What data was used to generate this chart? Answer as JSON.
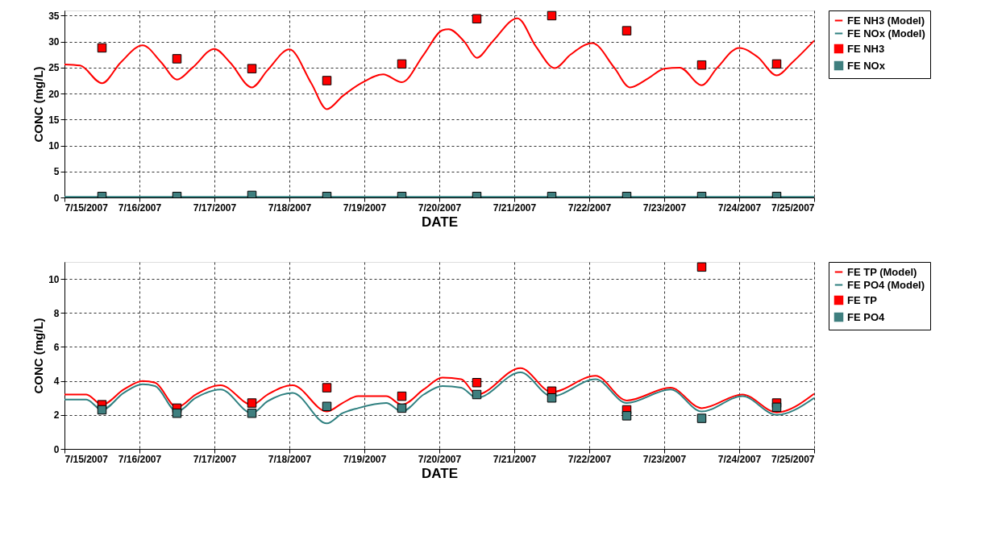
{
  "chart_data": [
    {
      "type": "line",
      "xlabel": "DATE",
      "ylabel": "CONC (mg/L)",
      "xlim": [
        "2007-07-15",
        "2007-07-25"
      ],
      "xticks": [
        {
          "value": "2007-07-15",
          "label": "7/15/2007"
        },
        {
          "value": "2007-07-16",
          "label": "7/16/2007"
        },
        {
          "value": "2007-07-17",
          "label": "7/17/2007"
        },
        {
          "value": "2007-07-18",
          "label": "7/18/2007"
        },
        {
          "value": "2007-07-19",
          "label": "7/19/2007"
        },
        {
          "value": "2007-07-20",
          "label": "7/20/2007"
        },
        {
          "value": "2007-07-21",
          "label": "7/21/2007"
        },
        {
          "value": "2007-07-22",
          "label": "7/22/2007"
        },
        {
          "value": "2007-07-23",
          "label": "7/23/2007"
        },
        {
          "value": "2007-07-24",
          "label": "7/24/2007"
        },
        {
          "value": "2007-07-25",
          "label": "7/25/2007"
        }
      ],
      "ylim": [
        0,
        36
      ],
      "yticks": [
        0,
        5,
        10,
        15,
        20,
        25,
        30,
        35
      ],
      "grid": true,
      "legend": "top right",
      "series": [
        {
          "name": "FE NH3 (Model)",
          "type": "line",
          "color": "#ff0000",
          "marker": "none",
          "x": [
            "2007-07-15T00:00",
            "2007-07-15T05:00",
            "2007-07-15T12:00",
            "2007-07-15T18:00",
            "2007-07-16T01:00",
            "2007-07-16T07:00",
            "2007-07-16T12:00",
            "2007-07-16T17:00",
            "2007-07-17T00:00",
            "2007-07-17T05:00",
            "2007-07-17T12:00",
            "2007-07-17T17:00",
            "2007-07-18T00:00",
            "2007-07-18T07:00",
            "2007-07-18T12:00",
            "2007-07-18T17:00",
            "2007-07-18T23:00",
            "2007-07-19T06:00",
            "2007-07-19T12:00",
            "2007-07-19T19:00",
            "2007-07-20T01:00",
            "2007-07-20T03:00",
            "2007-07-20T08:00",
            "2007-07-20T12:00",
            "2007-07-20T17:00",
            "2007-07-21T01:00",
            "2007-07-21T07:00",
            "2007-07-21T13:00",
            "2007-07-21T18:00",
            "2007-07-22T01:00",
            "2007-07-22T08:00",
            "2007-07-22T13:00",
            "2007-07-22T19:00",
            "2007-07-23T00:00",
            "2007-07-23T05:00",
            "2007-07-23T12:00",
            "2007-07-23T17:00",
            "2007-07-24T00:00",
            "2007-07-24T06:00",
            "2007-07-24T12:00",
            "2007-07-24T17:00",
            "2007-07-25T00:00"
          ],
          "values": [
            25.6,
            25.4,
            22.0,
            26.0,
            29.3,
            26.0,
            22.7,
            25.0,
            28.6,
            26.0,
            21.2,
            24.5,
            28.5,
            22.0,
            17.0,
            19.5,
            22.0,
            23.7,
            22.2,
            27.5,
            32.2,
            32.4,
            30.0,
            26.9,
            30.0,
            34.5,
            29.0,
            24.9,
            27.5,
            29.7,
            25.0,
            21.2,
            23.0,
            24.8,
            25.0,
            21.6,
            25.0,
            28.8,
            27.0,
            23.5,
            26.0,
            30.2
          ]
        },
        {
          "name": "FE NOx (Model)",
          "type": "line",
          "color": "#2f8080",
          "marker": "none",
          "x": [
            "2007-07-15T00:00",
            "2007-07-25T00:00"
          ],
          "values": [
            0.1,
            0.1
          ]
        },
        {
          "name": "FE NH3",
          "type": "scatter",
          "color": "#ff0000",
          "marker": "square",
          "x": [
            "2007-07-15T12:00",
            "2007-07-16T12:00",
            "2007-07-17T12:00",
            "2007-07-18T12:00",
            "2007-07-19T12:00",
            "2007-07-20T12:00",
            "2007-07-21T12:00",
            "2007-07-22T12:00",
            "2007-07-23T12:00",
            "2007-07-24T12:00"
          ],
          "values": [
            28.8,
            26.7,
            24.8,
            22.5,
            25.7,
            34.4,
            35.0,
            32.1,
            25.5,
            25.7
          ]
        },
        {
          "name": "FE NOx",
          "type": "scatter",
          "color": "#3f7f7f",
          "marker": "square",
          "x": [
            "2007-07-15T12:00",
            "2007-07-16T12:00",
            "2007-07-17T12:00",
            "2007-07-18T12:00",
            "2007-07-19T12:00",
            "2007-07-20T12:00",
            "2007-07-21T12:00",
            "2007-07-22T12:00",
            "2007-07-23T12:00",
            "2007-07-24T12:00"
          ],
          "values": [
            0.2,
            0.2,
            0.4,
            0.2,
            0.2,
            0.2,
            0.2,
            0.2,
            0.2,
            0.2
          ]
        }
      ]
    },
    {
      "type": "line",
      "xlabel": "DATE",
      "ylabel": "CONC (mg/L)",
      "xlim": [
        "2007-07-15",
        "2007-07-25"
      ],
      "xticks": [
        {
          "value": "2007-07-15",
          "label": "7/15/2007"
        },
        {
          "value": "2007-07-16",
          "label": "7/16/2007"
        },
        {
          "value": "2007-07-17",
          "label": "7/17/2007"
        },
        {
          "value": "2007-07-18",
          "label": "7/18/2007"
        },
        {
          "value": "2007-07-19",
          "label": "7/19/2007"
        },
        {
          "value": "2007-07-20",
          "label": "7/20/2007"
        },
        {
          "value": "2007-07-21",
          "label": "7/21/2007"
        },
        {
          "value": "2007-07-22",
          "label": "7/22/2007"
        },
        {
          "value": "2007-07-23",
          "label": "7/23/2007"
        },
        {
          "value": "2007-07-24",
          "label": "7/24/2007"
        },
        {
          "value": "2007-07-25",
          "label": "7/25/2007"
        }
      ],
      "ylim": [
        0,
        11
      ],
      "yticks": [
        0,
        2,
        4,
        6,
        8,
        10
      ],
      "grid": true,
      "legend": "top right",
      "series": [
        {
          "name": "FE TP (Model)",
          "type": "line",
          "color": "#ff0000",
          "marker": "none",
          "x": [
            "2007-07-15T00:00",
            "2007-07-15T07:00",
            "2007-07-15T12:00",
            "2007-07-15T19:00",
            "2007-07-16T01:00",
            "2007-07-16T05:00",
            "2007-07-16T12:00",
            "2007-07-16T18:00",
            "2007-07-17T02:00",
            "2007-07-17T12:00",
            "2007-07-17T17:00",
            "2007-07-18T01:00",
            "2007-07-18T12:00",
            "2007-07-18T17:00",
            "2007-07-18T22:00",
            "2007-07-19T07:00",
            "2007-07-19T12:00",
            "2007-07-19T19:00",
            "2007-07-20T01:00",
            "2007-07-20T07:00",
            "2007-07-20T12:00",
            "2007-07-21T02:00",
            "2007-07-21T12:00",
            "2007-07-22T02:00",
            "2007-07-22T12:00",
            "2007-07-23T02:00",
            "2007-07-23T12:00",
            "2007-07-24T01:00",
            "2007-07-24T12:00",
            "2007-07-25T00:00"
          ],
          "values": [
            3.2,
            3.2,
            2.6,
            3.5,
            4.0,
            3.9,
            2.45,
            3.2,
            3.75,
            2.6,
            3.2,
            3.75,
            2.2,
            2.7,
            3.1,
            3.1,
            2.6,
            3.5,
            4.2,
            4.1,
            3.2,
            4.75,
            3.35,
            4.3,
            2.85,
            3.6,
            2.4,
            3.2,
            2.15,
            3.25
          ]
        },
        {
          "name": "FE PO4 (Model)",
          "type": "line",
          "color": "#2f8080",
          "marker": "none",
          "x": [
            "2007-07-15T00:00",
            "2007-07-15T07:00",
            "2007-07-15T12:00",
            "2007-07-15T19:00",
            "2007-07-16T01:00",
            "2007-07-16T05:00",
            "2007-07-16T12:00",
            "2007-07-16T18:00",
            "2007-07-17T02:00",
            "2007-07-17T12:00",
            "2007-07-17T17:00",
            "2007-07-18T01:00",
            "2007-07-18T12:00",
            "2007-07-18T17:00",
            "2007-07-18T22:00",
            "2007-07-19T07:00",
            "2007-07-19T12:00",
            "2007-07-19T19:00",
            "2007-07-20T01:00",
            "2007-07-20T07:00",
            "2007-07-20T12:00",
            "2007-07-21T02:00",
            "2007-07-21T12:00",
            "2007-07-22T02:00",
            "2007-07-22T12:00",
            "2007-07-23T02:00",
            "2007-07-23T12:00",
            "2007-07-24T01:00",
            "2007-07-24T12:00",
            "2007-07-25T00:00"
          ],
          "values": [
            2.9,
            2.9,
            2.3,
            3.3,
            3.8,
            3.7,
            2.2,
            3.0,
            3.5,
            2.1,
            2.8,
            3.3,
            1.5,
            2.1,
            2.4,
            2.7,
            2.2,
            3.2,
            3.7,
            3.6,
            3.0,
            4.5,
            3.1,
            4.1,
            2.7,
            3.5,
            2.2,
            3.1,
            2.0,
            3.0
          ]
        },
        {
          "name": "FE TP",
          "type": "scatter",
          "color": "#ff0000",
          "marker": "square",
          "x": [
            "2007-07-15T12:00",
            "2007-07-16T12:00",
            "2007-07-17T12:00",
            "2007-07-18T12:00",
            "2007-07-19T12:00",
            "2007-07-20T12:00",
            "2007-07-21T12:00",
            "2007-07-22T12:00",
            "2007-07-23T12:00",
            "2007-07-24T12:00"
          ],
          "values": [
            2.6,
            2.4,
            2.7,
            3.6,
            3.1,
            3.9,
            3.4,
            2.3,
            10.7,
            2.7
          ]
        },
        {
          "name": "FE PO4",
          "type": "scatter",
          "color": "#3f7f7f",
          "marker": "square",
          "x": [
            "2007-07-15T12:00",
            "2007-07-16T12:00",
            "2007-07-17T12:00",
            "2007-07-18T12:00",
            "2007-07-19T12:00",
            "2007-07-20T12:00",
            "2007-07-21T12:00",
            "2007-07-22T12:00",
            "2007-07-23T12:00",
            "2007-07-24T12:00"
          ],
          "values": [
            2.3,
            2.1,
            2.1,
            2.5,
            2.4,
            3.2,
            3.0,
            1.95,
            1.8,
            2.45
          ]
        }
      ]
    }
  ]
}
